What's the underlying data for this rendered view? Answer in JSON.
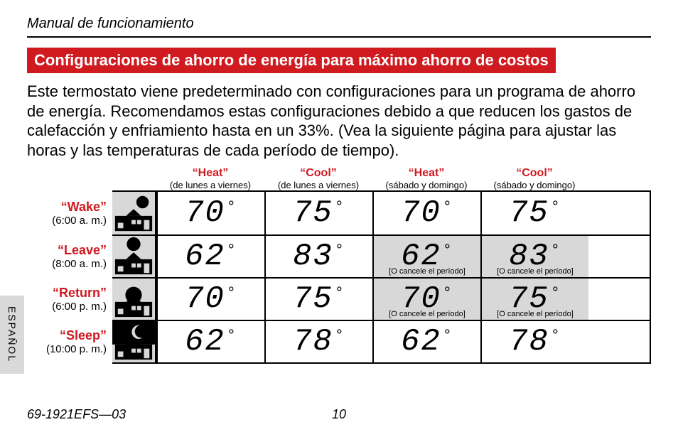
{
  "header": {
    "title": "Manual de funcionamiento"
  },
  "banner": "Configuraciones de ahorro de energía para máximo ahorro de costos",
  "body": "Este termostato viene predeterminado con configuraciones para un programa de ahorro de energía. Recomendamos estas configuraciones debido a que reducen los gastos de calefacción y enfriamiento hasta en un 33%. (Vea la siguiente página para ajustar las horas y las temperaturas de cada período de tiempo).",
  "columns": [
    {
      "mode": "“Heat”",
      "days": "(de lunes a viernes)"
    },
    {
      "mode": "“Cool”",
      "days": "(de lunes a viernes)"
    },
    {
      "mode": "“Heat”",
      "days": "(sábado y domingo)"
    },
    {
      "mode": "“Cool”",
      "days": "(sábado y domingo)"
    }
  ],
  "cancel_text": "[O cancele el período]",
  "rows": [
    {
      "name": "“Wake”",
      "time": "(6:00 a. m.)",
      "cells": [
        {
          "t": "70"
        },
        {
          "t": "75"
        },
        {
          "t": "70"
        },
        {
          "t": "75"
        }
      ]
    },
    {
      "name": "“Leave”",
      "time": "(8:00 a. m.)",
      "cells": [
        {
          "t": "62"
        },
        {
          "t": "83"
        },
        {
          "t": "62",
          "shaded": true,
          "cancel": true
        },
        {
          "t": "83",
          "shaded": true,
          "cancel": true
        }
      ]
    },
    {
      "name": "“Return”",
      "time": "(6:00 p. m.)",
      "cells": [
        {
          "t": "70"
        },
        {
          "t": "75"
        },
        {
          "t": "70",
          "shaded": true,
          "cancel": true
        },
        {
          "t": "75",
          "shaded": true,
          "cancel": true
        }
      ]
    },
    {
      "name": "“Sleep”",
      "time": "(10:00 p. m.)",
      "cells": [
        {
          "t": "62"
        },
        {
          "t": "78"
        },
        {
          "t": "62"
        },
        {
          "t": "78"
        }
      ]
    }
  ],
  "side_tab": "ESPAÑOL",
  "footer": {
    "doc": "69-1921EFS—03",
    "page": "10"
  },
  "colors": {
    "accent": "#cf1a20",
    "shade": "#d8d8d8"
  }
}
